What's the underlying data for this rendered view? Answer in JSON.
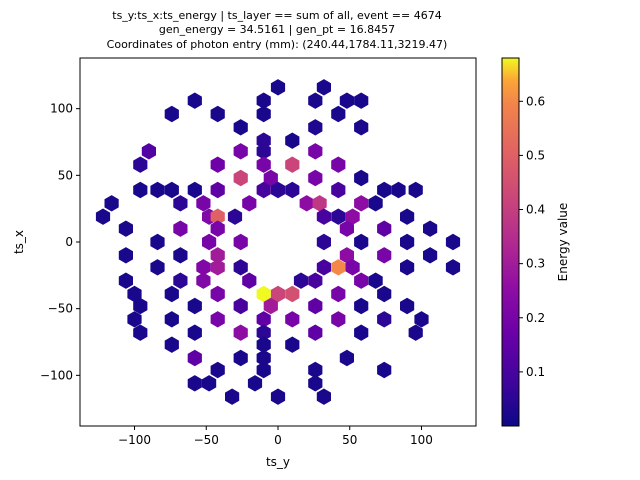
{
  "chart_data": {
    "type": "heatmap",
    "style": "hexbin",
    "title_lines": [
      "ts_y:ts_x:ts_energy   |   ts_layer == sum of all, event == 4674",
      "gen_energy = 34.5161    |    gen_pt = 16.8457",
      "Coordinates of photon entry (mm): (240.44,1784.11,3219.47)"
    ],
    "xlabel": "ts_y",
    "ylabel": "ts_x",
    "xlim": [
      -138,
      138
    ],
    "ylim": [
      -138,
      138
    ],
    "xticks": [
      -100,
      -50,
      0,
      50,
      100
    ],
    "yticks": [
      -100,
      -50,
      0,
      50,
      100
    ],
    "colorbar": {
      "label": "Energy value",
      "range": [
        0.0,
        0.68
      ],
      "ticks": [
        0.1,
        0.2,
        0.3,
        0.4,
        0.5,
        0.6
      ],
      "colormap": "plasma"
    },
    "cells": [
      {
        "x": 0,
        "y": 116,
        "e": 0.02
      },
      {
        "x": 32,
        "y": 116,
        "e": 0.02
      },
      {
        "x": -58,
        "y": 106,
        "e": 0.02
      },
      {
        "x": -74,
        "y": 96,
        "e": 0.02
      },
      {
        "x": -42,
        "y": 96,
        "e": 0.02
      },
      {
        "x": -26,
        "y": 86,
        "e": 0.02
      },
      {
        "x": -10,
        "y": 96,
        "e": 0.02
      },
      {
        "x": -10,
        "y": 106,
        "e": 0.02
      },
      {
        "x": 26,
        "y": 106,
        "e": 0.02
      },
      {
        "x": 42,
        "y": 96,
        "e": 0.02
      },
      {
        "x": 48,
        "y": 106,
        "e": 0.02
      },
      {
        "x": 58,
        "y": 106,
        "e": 0.02
      },
      {
        "x": 58,
        "y": 86,
        "e": 0.02
      },
      {
        "x": 26,
        "y": 86,
        "e": 0.03
      },
      {
        "x": -10,
        "y": 76,
        "e": 0.05
      },
      {
        "x": 10,
        "y": 76,
        "e": 0.02
      },
      {
        "x": -90,
        "y": 68,
        "e": 0.12
      },
      {
        "x": -26,
        "y": 68,
        "e": 0.2
      },
      {
        "x": -10,
        "y": 68,
        "e": 0.05
      },
      {
        "x": 26,
        "y": 68,
        "e": 0.2
      },
      {
        "x": -96,
        "y": 58,
        "e": 0.05
      },
      {
        "x": -42,
        "y": 58,
        "e": 0.18
      },
      {
        "x": -10,
        "y": 58,
        "e": 0.2
      },
      {
        "x": 10,
        "y": 58,
        "e": 0.42
      },
      {
        "x": 42,
        "y": 58,
        "e": 0.2
      },
      {
        "x": -26,
        "y": 48,
        "e": 0.42
      },
      {
        "x": -5,
        "y": 48,
        "e": 0.2
      },
      {
        "x": 26,
        "y": 48,
        "e": 0.2
      },
      {
        "x": 58,
        "y": 48,
        "e": 0.02
      },
      {
        "x": -96,
        "y": 39,
        "e": 0.02
      },
      {
        "x": -84,
        "y": 39,
        "e": 0.02
      },
      {
        "x": -74,
        "y": 39,
        "e": 0.02
      },
      {
        "x": -58,
        "y": 39,
        "e": 0.02
      },
      {
        "x": -42,
        "y": 39,
        "e": 0.15
      },
      {
        "x": -10,
        "y": 39,
        "e": 0.1
      },
      {
        "x": 0,
        "y": 39,
        "e": 0.05
      },
      {
        "x": 10,
        "y": 39,
        "e": 0.05
      },
      {
        "x": 42,
        "y": 39,
        "e": 0.1
      },
      {
        "x": 74,
        "y": 39,
        "e": 0.02
      },
      {
        "x": 84,
        "y": 39,
        "e": 0.02
      },
      {
        "x": 96,
        "y": 39,
        "e": 0.02
      },
      {
        "x": -116,
        "y": 29,
        "e": 0.02
      },
      {
        "x": -68,
        "y": 29,
        "e": 0.05
      },
      {
        "x": -52,
        "y": 29,
        "e": 0.2
      },
      {
        "x": -20,
        "y": 29,
        "e": 0.2
      },
      {
        "x": 20,
        "y": 29,
        "e": 0.25
      },
      {
        "x": 29,
        "y": 29,
        "e": 0.38
      },
      {
        "x": 58,
        "y": 29,
        "e": 0.25
      },
      {
        "x": 68,
        "y": 29,
        "e": 0.02
      },
      {
        "x": -122,
        "y": 19,
        "e": 0.02
      },
      {
        "x": -48,
        "y": 19,
        "e": 0.22
      },
      {
        "x": -42,
        "y": 19,
        "e": 0.5
      },
      {
        "x": -30,
        "y": 19,
        "e": 0.05
      },
      {
        "x": 32,
        "y": 19,
        "e": 0.1
      },
      {
        "x": 42,
        "y": 19,
        "e": 0.05
      },
      {
        "x": 52,
        "y": 19,
        "e": 0.25
      },
      {
        "x": 90,
        "y": 19,
        "e": 0.02
      },
      {
        "x": -106,
        "y": 10,
        "e": 0.02
      },
      {
        "x": -68,
        "y": 10,
        "e": 0.2
      },
      {
        "x": -42,
        "y": 10,
        "e": 0.2
      },
      {
        "x": 48,
        "y": 10,
        "e": 0.2
      },
      {
        "x": 74,
        "y": 10,
        "e": 0.15
      },
      {
        "x": 106,
        "y": 10,
        "e": 0.02
      },
      {
        "x": -84,
        "y": 0,
        "e": 0.02
      },
      {
        "x": -48,
        "y": 0,
        "e": 0.2
      },
      {
        "x": -26,
        "y": 0,
        "e": 0.2
      },
      {
        "x": 32,
        "y": 0,
        "e": 0.05
      },
      {
        "x": 58,
        "y": 0,
        "e": 0.02
      },
      {
        "x": 90,
        "y": 0,
        "e": 0.02
      },
      {
        "x": 122,
        "y": 0,
        "e": 0.02
      },
      {
        "x": -106,
        "y": -10,
        "e": 0.02
      },
      {
        "x": -68,
        "y": -10,
        "e": 0.02
      },
      {
        "x": -42,
        "y": -10,
        "e": 0.3
      },
      {
        "x": 48,
        "y": -10,
        "e": 0.25
      },
      {
        "x": 74,
        "y": -10,
        "e": 0.2
      },
      {
        "x": 106,
        "y": -10,
        "e": 0.02
      },
      {
        "x": -84,
        "y": -19,
        "e": 0.02
      },
      {
        "x": -52,
        "y": -19,
        "e": 0.22
      },
      {
        "x": -42,
        "y": -19,
        "e": 0.3
      },
      {
        "x": -26,
        "y": -19,
        "e": 0.05
      },
      {
        "x": 32,
        "y": -19,
        "e": 0.1
      },
      {
        "x": 42,
        "y": -19,
        "e": 0.6
      },
      {
        "x": 52,
        "y": -19,
        "e": 0.2
      },
      {
        "x": 90,
        "y": -19,
        "e": 0.02
      },
      {
        "x": 122,
        "y": -19,
        "e": 0.02
      },
      {
        "x": -106,
        "y": -29,
        "e": 0.02
      },
      {
        "x": -68,
        "y": -29,
        "e": 0.05
      },
      {
        "x": -52,
        "y": -29,
        "e": 0.22
      },
      {
        "x": -20,
        "y": -29,
        "e": 0.15
      },
      {
        "x": 16,
        "y": -29,
        "e": 0.05
      },
      {
        "x": 26,
        "y": -29,
        "e": 0.1
      },
      {
        "x": 58,
        "y": -29,
        "e": 0.2
      },
      {
        "x": 68,
        "y": -29,
        "e": 0.02
      },
      {
        "x": -100,
        "y": -39,
        "e": 0.02
      },
      {
        "x": -74,
        "y": -39,
        "e": 0.02
      },
      {
        "x": -42,
        "y": -39,
        "e": 0.2
      },
      {
        "x": -10,
        "y": -39,
        "e": 0.68
      },
      {
        "x": 0,
        "y": -39,
        "e": 0.42
      },
      {
        "x": 10,
        "y": -39,
        "e": 0.45
      },
      {
        "x": 42,
        "y": -39,
        "e": 0.2
      },
      {
        "x": 74,
        "y": -39,
        "e": 0.02
      },
      {
        "x": -96,
        "y": -48,
        "e": 0.02
      },
      {
        "x": -58,
        "y": -48,
        "e": 0.02
      },
      {
        "x": -26,
        "y": -48,
        "e": 0.1
      },
      {
        "x": -5,
        "y": -48,
        "e": 0.3
      },
      {
        "x": 26,
        "y": -48,
        "e": 0.15
      },
      {
        "x": 58,
        "y": -48,
        "e": 0.02
      },
      {
        "x": 90,
        "y": -48,
        "e": 0.02
      },
      {
        "x": -100,
        "y": -58,
        "e": 0.02
      },
      {
        "x": -74,
        "y": -58,
        "e": 0.02
      },
      {
        "x": -42,
        "y": -58,
        "e": 0.2
      },
      {
        "x": -10,
        "y": -58,
        "e": 0.15
      },
      {
        "x": 10,
        "y": -58,
        "e": 0.2
      },
      {
        "x": 42,
        "y": -58,
        "e": 0.2
      },
      {
        "x": 74,
        "y": -58,
        "e": 0.05
      },
      {
        "x": 100,
        "y": -58,
        "e": 0.02
      },
      {
        "x": -96,
        "y": -68,
        "e": 0.02
      },
      {
        "x": -58,
        "y": -68,
        "e": 0.02
      },
      {
        "x": -26,
        "y": -68,
        "e": 0.25
      },
      {
        "x": -10,
        "y": -68,
        "e": 0.05
      },
      {
        "x": 26,
        "y": -68,
        "e": 0.15
      },
      {
        "x": 58,
        "y": -68,
        "e": 0.02
      },
      {
        "x": 96,
        "y": -68,
        "e": 0.02
      },
      {
        "x": -74,
        "y": -77,
        "e": 0.02
      },
      {
        "x": -10,
        "y": -77,
        "e": 0.02
      },
      {
        "x": 10,
        "y": -77,
        "e": 0.02
      },
      {
        "x": -58,
        "y": -87,
        "e": 0.15
      },
      {
        "x": -26,
        "y": -87,
        "e": 0.02
      },
      {
        "x": -10,
        "y": -87,
        "e": 0.02
      },
      {
        "x": 48,
        "y": -87,
        "e": 0.02
      },
      {
        "x": -42,
        "y": -96,
        "e": 0.02
      },
      {
        "x": -10,
        "y": -96,
        "e": 0.02
      },
      {
        "x": 26,
        "y": -96,
        "e": 0.02
      },
      {
        "x": 74,
        "y": -96,
        "e": 0.02
      },
      {
        "x": -58,
        "y": -106,
        "e": 0.02
      },
      {
        "x": -48,
        "y": -106,
        "e": 0.02
      },
      {
        "x": -16,
        "y": -106,
        "e": 0.02
      },
      {
        "x": 26,
        "y": -106,
        "e": 0.02
      },
      {
        "x": -32,
        "y": -116,
        "e": 0.02
      },
      {
        "x": 0,
        "y": -116,
        "e": 0.02
      },
      {
        "x": 32,
        "y": -116,
        "e": 0.02
      }
    ]
  }
}
